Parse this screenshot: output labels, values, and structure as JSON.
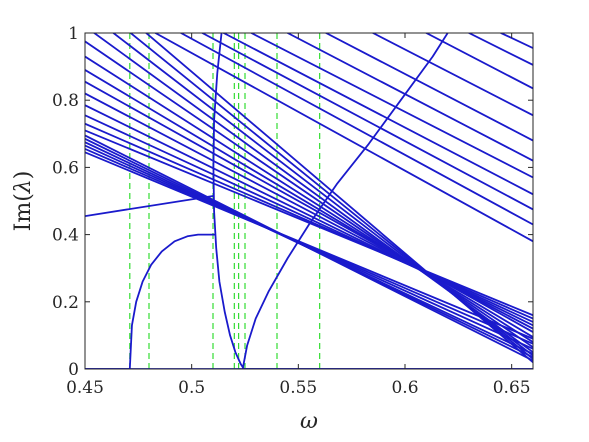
{
  "chart_data": {
    "type": "line",
    "xlabel": "ω",
    "ylabel_func": "Im",
    "ylabel_var": "λ",
    "xlim": [
      0.45,
      0.66
    ],
    "ylim": [
      0,
      1
    ],
    "xticks": [
      0.45,
      0.5,
      0.55,
      0.6,
      0.65
    ],
    "xtick_labels": [
      "0.45",
      "0.5",
      "0.55",
      "0.6",
      "0.65"
    ],
    "yticks": [
      0,
      0.2,
      0.4,
      0.6,
      0.8,
      1
    ],
    "ytick_labels": [
      "0",
      "0.2",
      "0.4",
      "0.6",
      "0.8",
      "1"
    ],
    "grid": false,
    "legend": "none",
    "colors": {
      "curve": "#1a1acc",
      "dashed": "#33dd33",
      "axis": "#262626"
    },
    "vertical_dashed_lines_x": [
      0.471,
      0.48,
      0.51,
      0.52,
      0.522,
      0.525,
      0.54,
      0.56
    ],
    "straight_lines": [
      {
        "x": [
          0.45,
          0.66
        ],
        "y": [
          1.155,
          0.02
        ]
      },
      {
        "x": [
          0.45,
          0.66
        ],
        "y": [
          1.11,
          0.03
        ]
      },
      {
        "x": [
          0.45,
          0.66
        ],
        "y": [
          1.065,
          0.04
        ]
      },
      {
        "x": [
          0.45,
          0.66
        ],
        "y": [
          1.02,
          0.05
        ]
      },
      {
        "x": [
          0.45,
          0.66
        ],
        "y": [
          0.975,
          0.065
        ]
      },
      {
        "x": [
          0.45,
          0.66
        ],
        "y": [
          0.93,
          0.08
        ]
      },
      {
        "x": [
          0.45,
          0.66
        ],
        "y": [
          0.89,
          0.095
        ]
      },
      {
        "x": [
          0.45,
          0.66
        ],
        "y": [
          0.855,
          0.11
        ]
      },
      {
        "x": [
          0.45,
          0.66
        ],
        "y": [
          0.82,
          0.12
        ]
      },
      {
        "x": [
          0.45,
          0.66
        ],
        "y": [
          0.785,
          0.13
        ]
      },
      {
        "x": [
          0.45,
          0.66
        ],
        "y": [
          0.755,
          0.14
        ]
      },
      {
        "x": [
          0.45,
          0.66
        ],
        "y": [
          0.73,
          0.15
        ]
      },
      {
        "x": [
          0.45,
          0.66
        ],
        "y": [
          0.71,
          0.16
        ]
      },
      {
        "x": [
          0.45,
          0.66
        ],
        "y": [
          0.695,
          0.025
        ]
      },
      {
        "x": [
          0.45,
          0.66
        ],
        "y": [
          0.685,
          0.035
        ]
      },
      {
        "x": [
          0.45,
          0.66
        ],
        "y": [
          0.675,
          0.045
        ]
      },
      {
        "x": [
          0.45,
          0.66
        ],
        "y": [
          0.665,
          0.06
        ]
      },
      {
        "x": [
          0.45,
          0.66
        ],
        "y": [
          0.655,
          0.075
        ]
      },
      {
        "x": [
          0.45,
          0.66
        ],
        "y": [
          0.645,
          0.09
        ]
      },
      {
        "x": [
          0.483,
          0.66
        ],
        "y": [
          1.0,
          0.38
        ]
      },
      {
        "x": [
          0.495,
          0.66
        ],
        "y": [
          1.0,
          0.43
        ]
      },
      {
        "x": [
          0.505,
          0.66
        ],
        "y": [
          1.0,
          0.475
        ]
      },
      {
        "x": [
          0.515,
          0.66
        ],
        "y": [
          1.0,
          0.52
        ]
      },
      {
        "x": [
          0.528,
          0.66
        ],
        "y": [
          1.0,
          0.57
        ]
      },
      {
        "x": [
          0.545,
          0.66
        ],
        "y": [
          1.0,
          0.62
        ]
      },
      {
        "x": [
          0.563,
          0.66
        ],
        "y": [
          1.0,
          0.68
        ]
      },
      {
        "x": [
          0.585,
          0.66
        ],
        "y": [
          1.0,
          0.755
        ]
      },
      {
        "x": [
          0.61,
          0.66
        ],
        "y": [
          1.0,
          0.835
        ]
      },
      {
        "x": [
          0.63,
          0.66
        ],
        "y": [
          1.0,
          0.905
        ]
      },
      {
        "x": [
          0.645,
          0.66
        ],
        "y": [
          1.0,
          0.955
        ]
      },
      {
        "x": [
          0.45,
          0.51
        ],
        "y": [
          0.455,
          0.515
        ]
      }
    ],
    "curves": [
      {
        "x": [
          0.471,
          0.472,
          0.474,
          0.477,
          0.481,
          0.486,
          0.492,
          0.498,
          0.503,
          0.507,
          0.51,
          0.511
        ],
        "y": [
          0.0,
          0.13,
          0.2,
          0.26,
          0.31,
          0.35,
          0.38,
          0.395,
          0.4,
          0.4,
          0.4,
          0.4
        ]
      },
      {
        "x": [
          0.514,
          0.512,
          0.5105,
          0.5102,
          0.5105,
          0.5115,
          0.513,
          0.5155,
          0.518,
          0.5205,
          0.523,
          0.5245
        ],
        "y": [
          1.0,
          0.88,
          0.74,
          0.6,
          0.47,
          0.36,
          0.26,
          0.17,
          0.1,
          0.05,
          0.015,
          0.0
        ]
      },
      {
        "x": [
          0.524,
          0.5245,
          0.526,
          0.53,
          0.536,
          0.545,
          0.555,
          0.568,
          0.583,
          0.598,
          0.613,
          0.62
        ],
        "y": [
          0.0,
          0.02,
          0.07,
          0.15,
          0.23,
          0.33,
          0.43,
          0.55,
          0.67,
          0.8,
          0.93,
          1.0
        ]
      },
      {
        "x": [
          0.45,
          0.471,
          0.471
        ],
        "y": [
          0.0,
          0.0,
          0.0
        ]
      },
      {
        "x": [
          0.524,
          0.66
        ],
        "y": [
          0.0,
          0.0
        ]
      },
      {
        "x": [
          0.45,
          0.66
        ],
        "y": [
          0.0,
          0.0
        ]
      }
    ]
  }
}
